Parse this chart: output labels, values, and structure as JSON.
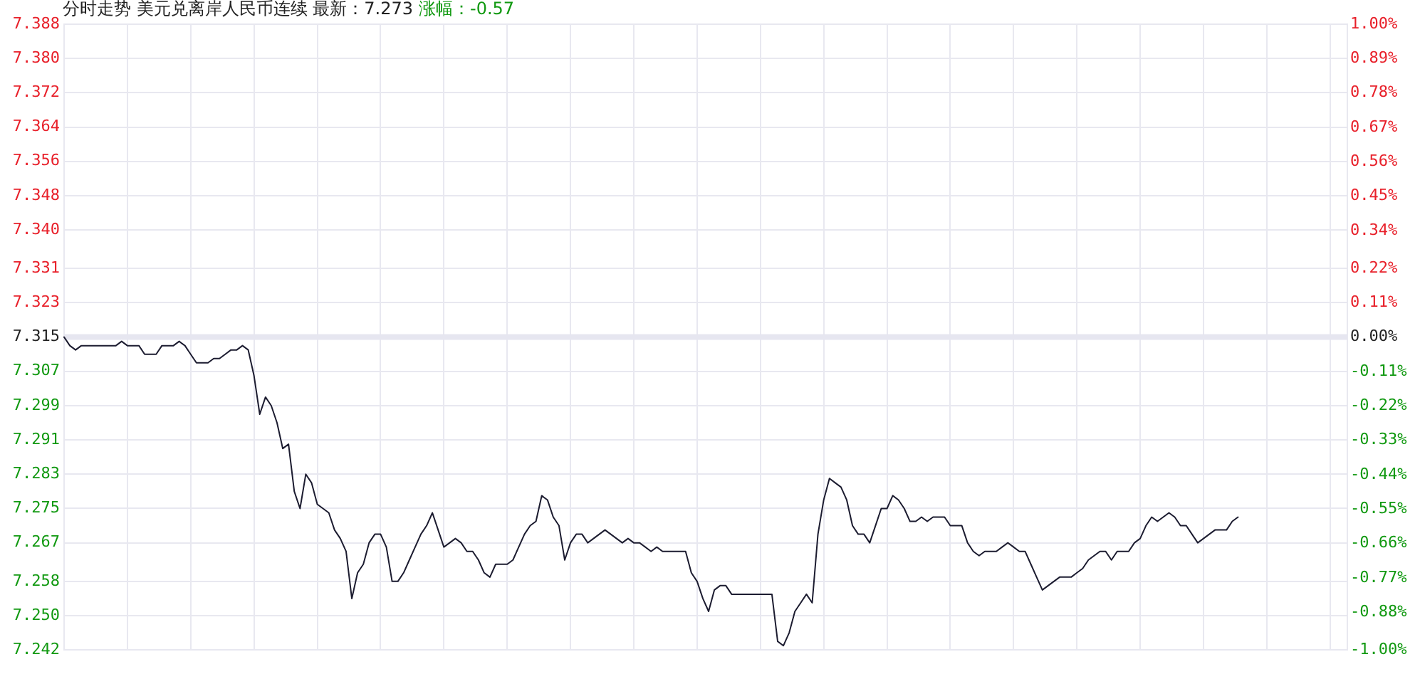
{
  "chart_data": {
    "type": "line",
    "title": "分时走势  美元兑离岸人民币连续 最新：7.273",
    "subtitle": "涨幅：-0.57",
    "categories": [
      null,
      null,
      null,
      null,
      null,
      null,
      null,
      null,
      null,
      null,
      null,
      null,
      null,
      null,
      null,
      null,
      null,
      null,
      null,
      null,
      null,
      null,
      null,
      null,
      null,
      null,
      null,
      null,
      null,
      null,
      null,
      null,
      null,
      null,
      null,
      null,
      null,
      null,
      null,
      null,
      null,
      null,
      null,
      null,
      null,
      null,
      null,
      null,
      null,
      null,
      null,
      null,
      null,
      null,
      null,
      null,
      null,
      null,
      null,
      null,
      null,
      null,
      null,
      null,
      null,
      null,
      null,
      null,
      null,
      null,
      null,
      null,
      null,
      null,
      null,
      null,
      null,
      null,
      null,
      null,
      null,
      null,
      null,
      null,
      null,
      null,
      null,
      null,
      null,
      null,
      null,
      null,
      null,
      null,
      null,
      null,
      null,
      null,
      null,
      null,
      null,
      null,
      null,
      null,
      null,
      null,
      null,
      null,
      null,
      null,
      null,
      null,
      null,
      null,
      null,
      null,
      null,
      null,
      null,
      null,
      null,
      null,
      null,
      null,
      null,
      null,
      null,
      null,
      null,
      null,
      null,
      null,
      null,
      null,
      null,
      null,
      null,
      null,
      null,
      null,
      null,
      null,
      null,
      null,
      null,
      null,
      null,
      null,
      null,
      null,
      null,
      null,
      null,
      null,
      null,
      null,
      null,
      null,
      null,
      null,
      null,
      null,
      null,
      null,
      null,
      null,
      null,
      null,
      null,
      null,
      null,
      null,
      null,
      null,
      null,
      null,
      null,
      null,
      null,
      null,
      null,
      null,
      null,
      null,
      null,
      null,
      null,
      null,
      null,
      null,
      null,
      null,
      null,
      null,
      null,
      null,
      null,
      null,
      null,
      null,
      null,
      null,
      null,
      null,
      null,
      null,
      null,
      null,
      null,
      null,
      null,
      null,
      null,
      null,
      null,
      null,
      null,
      null,
      null,
      null,
      null,
      null,
      null,
      null
    ],
    "series": [
      {
        "color": "#1c1c30",
        "values": [
          7.315,
          7.313,
          7.312,
          7.313,
          7.313,
          7.313,
          7.313,
          7.313,
          7.313,
          7.313,
          7.314,
          7.313,
          7.313,
          7.313,
          7.311,
          7.311,
          7.311,
          7.313,
          7.313,
          7.313,
          7.314,
          7.313,
          7.311,
          7.309,
          7.309,
          7.309,
          7.31,
          7.31,
          7.311,
          7.312,
          7.312,
          7.313,
          7.312,
          7.306,
          7.297,
          7.301,
          7.299,
          7.295,
          7.289,
          7.29,
          7.279,
          7.275,
          7.283,
          7.281,
          7.276,
          7.275,
          7.274,
          7.27,
          7.268,
          7.265,
          7.254,
          7.26,
          7.262,
          7.267,
          7.269,
          7.269,
          7.266,
          7.258,
          7.258,
          7.26,
          7.263,
          7.266,
          7.269,
          7.271,
          7.274,
          7.27,
          7.266,
          7.267,
          7.268,
          7.267,
          7.265,
          7.265,
          7.263,
          7.26,
          7.259,
          7.262,
          7.262,
          7.262,
          7.263,
          7.266,
          7.269,
          7.271,
          7.272,
          7.278,
          7.277,
          7.273,
          7.271,
          7.263,
          7.267,
          7.269,
          7.269,
          7.267,
          7.268,
          7.269,
          7.27,
          7.269,
          7.268,
          7.267,
          7.268,
          7.267,
          7.267,
          7.266,
          7.265,
          7.266,
          7.265,
          7.265,
          7.265,
          7.265,
          7.265,
          7.26,
          7.258,
          7.254,
          7.251,
          7.256,
          7.257,
          7.257,
          7.255,
          7.255,
          7.255,
          7.255,
          7.255,
          7.255,
          7.255,
          7.255,
          7.244,
          7.243,
          7.246,
          7.251,
          7.253,
          7.255,
          7.253,
          7.269,
          7.277,
          7.282,
          7.281,
          7.28,
          7.277,
          7.271,
          7.269,
          7.269,
          7.267,
          7.271,
          7.275,
          7.275,
          7.278,
          7.277,
          7.275,
          7.272,
          7.272,
          7.273,
          7.272,
          7.273,
          7.273,
          7.273,
          7.271,
          7.271,
          7.271,
          7.267,
          7.265,
          7.264,
          7.265,
          7.265,
          7.265,
          7.266,
          7.267,
          7.266,
          7.265,
          7.265,
          7.262,
          7.259,
          7.256,
          7.257,
          7.258,
          7.259,
          7.259,
          7.259,
          7.26,
          7.261,
          7.263,
          7.264,
          7.265,
          7.265,
          7.263,
          7.265,
          7.265,
          7.265,
          7.267,
          7.268,
          7.271,
          7.273,
          7.272,
          7.273,
          7.274,
          7.273,
          7.271,
          7.271,
          7.269,
          7.267,
          7.268,
          7.269,
          7.27,
          7.27,
          7.27,
          7.272,
          7.273,
          null,
          null,
          null,
          null,
          null,
          null,
          null,
          null,
          null,
          null,
          null,
          null,
          null,
          null,
          null,
          null,
          null,
          null,
          null
        ]
      }
    ],
    "ylim": [
      7.242,
      7.388
    ],
    "yticks": [
      {
        "value": 7.242,
        "label": "7.242"
      },
      {
        "value": 7.25,
        "label": "7.250"
      },
      {
        "value": 7.258,
        "label": "7.258"
      },
      {
        "value": 7.267,
        "label": "7.267"
      },
      {
        "value": 7.275,
        "label": "7.275"
      },
      {
        "value": 7.283,
        "label": "7.283"
      },
      {
        "value": 7.291,
        "label": "7.291"
      },
      {
        "value": 7.299,
        "label": "7.299"
      },
      {
        "value": 7.307,
        "label": "7.307"
      },
      {
        "value": 7.315,
        "label": "7.315"
      },
      {
        "value": 7.323,
        "label": "7.323"
      },
      {
        "value": 7.331,
        "label": "7.331"
      },
      {
        "value": 7.34,
        "label": "7.340"
      },
      {
        "value": 7.348,
        "label": "7.348"
      },
      {
        "value": 7.356,
        "label": "7.356"
      },
      {
        "value": 7.364,
        "label": "7.364"
      },
      {
        "value": 7.372,
        "label": "7.372"
      },
      {
        "value": 7.38,
        "label": "7.380"
      },
      {
        "value": 7.388,
        "label": "7.388"
      }
    ],
    "y2lim": [
      -1,
      1
    ],
    "y2ticks": [
      {
        "value": -1,
        "label": "-1.00%"
      },
      {
        "value": -0.88,
        "label": "-0.88%"
      },
      {
        "value": -0.77,
        "label": "-0.77%"
      },
      {
        "value": -0.66,
        "label": "-0.66%"
      },
      {
        "value": -0.55,
        "label": "-0.55%"
      },
      {
        "value": -0.44,
        "label": "-0.44%"
      },
      {
        "value": -0.33,
        "label": "-0.33%"
      },
      {
        "value": -0.22,
        "label": "-0.22%"
      },
      {
        "value": -0.11,
        "label": "-0.11%"
      },
      {
        "value": 0,
        "label": "0.00%"
      },
      {
        "value": 0.11,
        "label": "0.11%"
      },
      {
        "value": 0.22,
        "label": "0.22%"
      },
      {
        "value": 0.34,
        "label": "0.34%"
      },
      {
        "value": 0.45,
        "label": "0.45%"
      },
      {
        "value": 0.56,
        "label": "0.56%"
      },
      {
        "value": 0.67,
        "label": "0.67%"
      },
      {
        "value": 0.78,
        "label": "0.78%"
      },
      {
        "value": 0.89,
        "label": "0.89%"
      },
      {
        "value": 1,
        "label": "1.00%"
      }
    ],
    "ref_lines": [
      {
        "axis": "y",
        "value": 7.315,
        "color": "#e6e6f0"
      }
    ],
    "grid": true,
    "legend": false,
    "marker": "none",
    "line_style": "solid"
  }
}
